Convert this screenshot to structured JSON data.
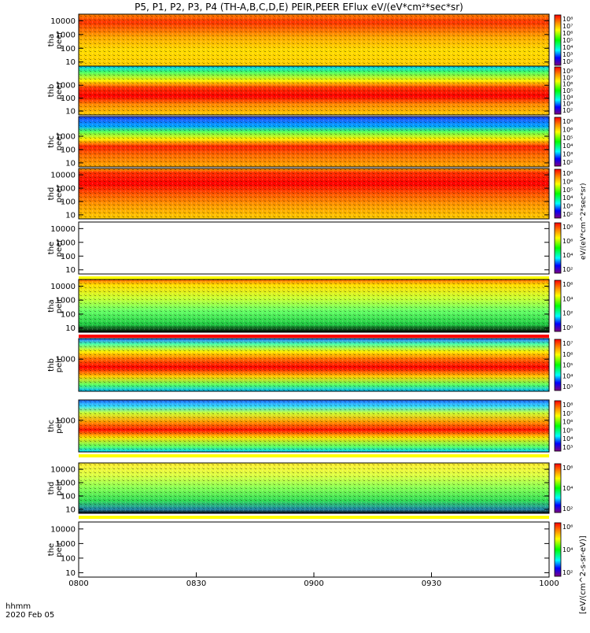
{
  "title": "P5, P1, P2, P3, P4 (TH-A,B,C,D,E) PEIR,PEER EFlux eV/(eV*cm²*sec*sr)",
  "colorbar_label_top": "eV/(eV*cm^2*sec*sr)",
  "colorbar_label_bottom": "[eV/(cm^2-s-sr-eV)]",
  "colors": {
    "red": "#ff0000",
    "yellow": "#ffff00",
    "green": "#33dd33",
    "cyan": "#00ffff",
    "blue": "#0000ff",
    "purple": "#800080"
  },
  "chart_data": {
    "type": "heatmap",
    "time_axis": {
      "label": "hhmm",
      "date": "2020 Feb 05",
      "ticks": [
        "0800",
        "0830",
        "0900",
        "0930",
        "1000"
      ]
    },
    "panels": [
      {
        "id": "tha-peer",
        "label": [
          "tha",
          "peer"
        ],
        "y_ticks": [
          "10000",
          "1000",
          "100",
          "10"
        ],
        "y_range_eV": [
          5,
          30000
        ],
        "cbar_ticks": [
          "10^8",
          "10^7",
          "10^6",
          "10^5",
          "10^4",
          "10^3",
          "10^2"
        ],
        "status": "data",
        "bands": [
          [
            0.0,
            "#ff8800"
          ],
          [
            0.15,
            "#ff3300"
          ],
          [
            0.45,
            "#ffaa00"
          ],
          [
            0.7,
            "#ffdd00"
          ],
          [
            1.0,
            "#ffcc00"
          ]
        ]
      },
      {
        "id": "thb-peer",
        "label": [
          "thb",
          "peer"
        ],
        "y_ticks": [
          "1000",
          "100",
          "10"
        ],
        "y_range_eV": [
          5,
          30000
        ],
        "cbar_ticks": [
          "10^8",
          "10^7",
          "10^6",
          "10^5",
          "10^4",
          "10^3",
          "10^2"
        ],
        "status": "data",
        "bands": [
          [
            0.0,
            "#00ccff"
          ],
          [
            0.12,
            "#44ff66"
          ],
          [
            0.3,
            "#ffee00"
          ],
          [
            0.45,
            "#ff3300"
          ],
          [
            0.62,
            "#ff0000"
          ],
          [
            0.78,
            "#ff8800"
          ],
          [
            1.0,
            "#ffcc00"
          ]
        ]
      },
      {
        "id": "thc-peer",
        "label": [
          "thc",
          "peer"
        ],
        "y_ticks": [
          "1000",
          "100",
          "10"
        ],
        "y_range_eV": [
          5,
          30000
        ],
        "cbar_ticks": [
          "10^8",
          "10^6",
          "10^5",
          "10^4",
          "10^3",
          "10^2"
        ],
        "status": "data",
        "bands": [
          [
            0.0,
            "#2244ff"
          ],
          [
            0.2,
            "#00aaff"
          ],
          [
            0.3,
            "#55ff55"
          ],
          [
            0.45,
            "#ffee00"
          ],
          [
            0.6,
            "#ff2200"
          ],
          [
            0.75,
            "#ff6600"
          ],
          [
            1.0,
            "#ffaa00"
          ]
        ]
      },
      {
        "id": "thd-peer",
        "label": [
          "thd",
          "peer"
        ],
        "y_ticks": [
          "10000",
          "1000",
          "100",
          "10"
        ],
        "y_range_eV": [
          5,
          30000
        ],
        "cbar_ticks": [
          "10^8",
          "10^6",
          "10^5",
          "10^4",
          "10^3",
          "10^2"
        ],
        "status": "data",
        "bands": [
          [
            0.0,
            "#ffaa00"
          ],
          [
            0.08,
            "#ff3300"
          ],
          [
            0.3,
            "#ff0000"
          ],
          [
            0.5,
            "#ff5500"
          ],
          [
            0.72,
            "#ff9900"
          ],
          [
            1.0,
            "#ffcc00"
          ]
        ]
      },
      {
        "id": "the-peer",
        "label": [
          "the",
          "peer"
        ],
        "y_ticks": [
          "10000",
          "1000",
          "100",
          "10"
        ],
        "y_range_eV": [
          5,
          30000
        ],
        "cbar_ticks": [
          "10^8",
          "10^6",
          "10^4",
          "10^2"
        ],
        "status": "no data",
        "bands": []
      },
      {
        "id": "tha-peir",
        "label": [
          "tha",
          "peir"
        ],
        "y_ticks": [
          "10000",
          "1000",
          "100",
          "10"
        ],
        "y_range_eV": [
          5,
          30000
        ],
        "cbar_ticks": [
          "10^6",
          "10^4",
          "10^2",
          "10^0"
        ],
        "status": "data",
        "bands": [
          [
            0.0,
            "#ff6600"
          ],
          [
            0.1,
            "#ffdd00"
          ],
          [
            0.35,
            "#ccff33"
          ],
          [
            0.6,
            "#66ff66"
          ],
          [
            0.85,
            "#22cc44"
          ],
          [
            1.0,
            "#000000"
          ]
        ]
      },
      {
        "id": "thb-peir",
        "label": [
          "thb",
          "peir"
        ],
        "y_ticks": [
          "1000"
        ],
        "y_range_eV": [
          5,
          30000
        ],
        "cbar_ticks": [
          "10^7",
          "10^6",
          "10^5",
          "10^4",
          "10^3"
        ],
        "status": "data",
        "bands": [
          [
            0.0,
            "#2266ff"
          ],
          [
            0.1,
            "#44ffaa"
          ],
          [
            0.25,
            "#ffee00"
          ],
          [
            0.4,
            "#ff6600"
          ],
          [
            0.55,
            "#ff0000"
          ],
          [
            0.72,
            "#ffcc00"
          ],
          [
            0.88,
            "#55ff66"
          ],
          [
            1.0,
            "#00bbff"
          ]
        ]
      },
      {
        "id": "thc-peir",
        "label": [
          "thc",
          "peir"
        ],
        "y_ticks": [
          "1000"
        ],
        "y_range_eV": [
          5,
          30000
        ],
        "cbar_ticks": [
          "10^8",
          "10^7",
          "10^6",
          "10^5",
          "10^4",
          "10^3"
        ],
        "status": "data",
        "bands": [
          [
            0.0,
            "#2266ff"
          ],
          [
            0.12,
            "#33ddff"
          ],
          [
            0.25,
            "#ccff33"
          ],
          [
            0.42,
            "#ff9900"
          ],
          [
            0.58,
            "#ff1100"
          ],
          [
            0.72,
            "#ffdd00"
          ],
          [
            0.9,
            "#55ff66"
          ],
          [
            1.0,
            "#00ccff"
          ]
        ]
      },
      {
        "id": "thd-peir",
        "label": [
          "thd",
          "peir"
        ],
        "y_ticks": [
          "10000",
          "1000",
          "100",
          "10"
        ],
        "y_range_eV": [
          5,
          30000
        ],
        "cbar_ticks": [
          "10^6",
          "10^4",
          "10^2"
        ],
        "status": "data",
        "bands": [
          [
            0.0,
            "#ffee33"
          ],
          [
            0.25,
            "#ddff44"
          ],
          [
            0.5,
            "#88ff55"
          ],
          [
            0.75,
            "#33dd55"
          ],
          [
            0.92,
            "#2288aa"
          ],
          [
            1.0,
            "#000000"
          ]
        ]
      },
      {
        "id": "the-peir",
        "label": [
          "the",
          "peir"
        ],
        "y_ticks": [
          "10000",
          "1000",
          "100",
          "10"
        ],
        "y_range_eV": [
          5,
          30000
        ],
        "cbar_ticks": [
          "10^6",
          "10^4",
          "10^2"
        ],
        "status": "no data",
        "bands": []
      }
    ]
  }
}
